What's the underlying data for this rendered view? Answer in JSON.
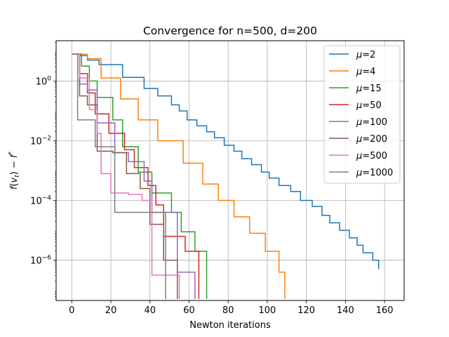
{
  "chart_data": {
    "type": "line",
    "title": "Convergence for n=500, d=200",
    "xlabel": "Newton iterations",
    "ylabel_parts": {
      "f": "f",
      "paren_open": "(",
      "v": "v",
      "sub": "t",
      "paren_close": ")",
      "minus": " − ",
      "fstar": "f",
      "star": "*"
    },
    "x_scale": "linear",
    "y_scale": "log",
    "xlim": [
      -8,
      170
    ],
    "ylim_log10": [
      -7.35,
      1.35
    ],
    "xticks": [
      0,
      20,
      40,
      60,
      80,
      100,
      120,
      140,
      160
    ],
    "xtick_labels": [
      "0",
      "20",
      "40",
      "60",
      "80",
      "100",
      "120",
      "140",
      "160"
    ],
    "yticks_log10": [
      0,
      -2,
      -4,
      -6
    ],
    "ytick_labels": [
      {
        "base": "10",
        "exp": "0"
      },
      {
        "base": "10",
        "exp": "−2"
      },
      {
        "base": "10",
        "exp": "−4"
      },
      {
        "base": "10",
        "exp": "−6"
      }
    ],
    "grid": true,
    "legend_position": "upper-right",
    "series": [
      {
        "name": "μ=2",
        "legend": {
          "mu": "μ",
          "value": "=2"
        },
        "color": "#1f77b4",
        "x": [
          0,
          4,
          8,
          14,
          26,
          37,
          44,
          51,
          55,
          59,
          64,
          69,
          73,
          78,
          83,
          87,
          92,
          97,
          101,
          106,
          112,
          117,
          123,
          128,
          132,
          137,
          142,
          146,
          149,
          154,
          157
        ],
        "log10y": [
          0.9,
          0.85,
          0.7,
          0.55,
          0.12,
          -0.25,
          -0.5,
          -0.8,
          -1.0,
          -1.3,
          -1.5,
          -1.7,
          -1.9,
          -2.15,
          -2.35,
          -2.6,
          -2.8,
          -3.05,
          -3.25,
          -3.5,
          -3.7,
          -4.0,
          -4.2,
          -4.5,
          -4.75,
          -5.0,
          -5.25,
          -5.5,
          -5.75,
          -6.0,
          -6.3
        ]
      },
      {
        "name": "μ=4",
        "legend": {
          "mu": "μ",
          "value": "=4"
        },
        "color": "#ff7f0e",
        "x": [
          0,
          8,
          15,
          25,
          34,
          44,
          57,
          67,
          75,
          83,
          91,
          99,
          106,
          109
        ],
        "log10y": [
          0.9,
          0.75,
          0.1,
          -0.6,
          -1.3,
          -2.0,
          -2.75,
          -3.45,
          -4.0,
          -4.55,
          -5.1,
          -5.7,
          -6.4,
          -7.3
        ]
      },
      {
        "name": "μ=15",
        "legend": {
          "mu": "μ",
          "value": "=15"
        },
        "color": "#2ca02c",
        "x": [
          0,
          5,
          9,
          13,
          21,
          26,
          34,
          41,
          51,
          56,
          63,
          69
        ],
        "log10y": [
          0.9,
          0.5,
          0.0,
          -0.55,
          -1.3,
          -2.2,
          -3.05,
          -3.75,
          -4.4,
          -5.05,
          -5.7,
          -7.3
        ]
      },
      {
        "name": "μ=50",
        "legend": {
          "mu": "μ",
          "value": "=50"
        },
        "color": "#d62728",
        "x": [
          0,
          4,
          8,
          12,
          19,
          27,
          32,
          39,
          43,
          47,
          58,
          65
        ],
        "log10y": [
          0.9,
          0.25,
          -0.4,
          -1.1,
          -1.75,
          -2.3,
          -2.9,
          -3.5,
          -4.15,
          -5.2,
          -5.7,
          -7.3
        ]
      },
      {
        "name": "μ=100",
        "legend": {
          "mu": "μ",
          "value": "=100"
        },
        "color": "#9467bd",
        "x": [
          0,
          4,
          8,
          13,
          22,
          29,
          37,
          41,
          54,
          63
        ],
        "log10y": [
          0.9,
          -0.1,
          -0.3,
          -1.4,
          -2.4,
          -2.7,
          -3.35,
          -4.4,
          -6.4,
          -7.3
        ]
      },
      {
        "name": "μ=200",
        "legend": {
          "mu": "μ",
          "value": "=200"
        },
        "color": "#8c564b",
        "x": [
          0,
          4,
          8,
          13,
          21,
          28,
          35,
          40,
          47,
          54
        ],
        "log10y": [
          0.9,
          -0.5,
          -0.8,
          -2.35,
          -2.4,
          -3.1,
          -3.6,
          -4.8,
          -6.0,
          -7.3
        ]
      },
      {
        "name": "μ=500",
        "legend": {
          "mu": "μ",
          "value": "=500"
        },
        "color": "#e377c2",
        "x": [
          0,
          4,
          9,
          13,
          15,
          20,
          29,
          36,
          41,
          55
        ],
        "log10y": [
          0.9,
          0.1,
          -0.95,
          -1.75,
          -3.1,
          -3.75,
          -3.8,
          -4.0,
          -6.5,
          -7.3
        ]
      },
      {
        "name": "μ=1000",
        "legend": {
          "mu": "μ",
          "value": "=1000"
        },
        "color": "#7f7f7f",
        "x": [
          0,
          3,
          12,
          22,
          48
        ],
        "log10y": [
          0.9,
          -1.3,
          -2.2,
          -4.4,
          -7.3
        ]
      }
    ]
  }
}
